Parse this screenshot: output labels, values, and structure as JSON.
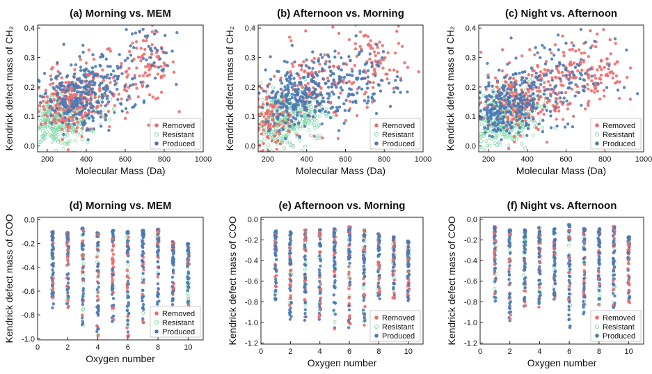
{
  "colors": {
    "removed": "#f06b6b",
    "resistant": "#7fd7a6",
    "produced": "#4a79b4"
  },
  "legend_labels": [
    "Removed",
    "Resistant",
    "Produced"
  ],
  "chart_data": [
    {
      "id": "a",
      "type": "scatter",
      "title": "(a) Morning vs. MEM",
      "xlabel": "Molecular Mass (Da)",
      "ylabel": "Kendrick defect mass of CH₂",
      "xlim": [
        150,
        1000
      ],
      "ylim": [
        -0.02,
        0.41
      ],
      "xticks": [
        200,
        400,
        600,
        800,
        1000
      ],
      "yticks": [
        0.0,
        0.1,
        0.2,
        0.3,
        0.4
      ],
      "legend_position": "bottom-right",
      "series": [
        {
          "name": "Removed",
          "cluster": [
            [
              300,
              0.14,
              70,
              0.045,
              160
            ],
            [
              420,
              0.19,
              110,
              0.06,
              130
            ],
            [
              720,
              0.27,
              70,
              0.06,
              80
            ]
          ]
        },
        {
          "name": "Resistant",
          "cluster": [
            [
              240,
              0.08,
              70,
              0.04,
              240
            ],
            [
              350,
              0.12,
              80,
              0.05,
              120
            ]
          ]
        },
        {
          "name": "Produced",
          "cluster": [
            [
              320,
              0.15,
              80,
              0.05,
              160
            ],
            [
              460,
              0.21,
              110,
              0.06,
              140
            ],
            [
              760,
              0.3,
              90,
              0.06,
              40
            ]
          ]
        }
      ]
    },
    {
      "id": "b",
      "type": "scatter",
      "title": "(b)  Afternoon vs. Morning",
      "xlabel": "Molecular Mass (Da)",
      "ylabel": "Kendrick defect mass of CH₂",
      "xlim": [
        150,
        1000
      ],
      "ylim": [
        -0.02,
        0.41
      ],
      "xticks": [
        200,
        400,
        600,
        800,
        1000
      ],
      "yticks": [
        0.0,
        0.1,
        0.2,
        0.3,
        0.4
      ],
      "legend_position": "bottom-right",
      "series": [
        {
          "name": "Removed",
          "cluster": [
            [
              220,
              0.09,
              50,
              0.05,
              110
            ],
            [
              440,
              0.2,
              110,
              0.07,
              120
            ],
            [
              740,
              0.28,
              80,
              0.07,
              80
            ]
          ]
        },
        {
          "name": "Resistant",
          "cluster": [
            [
              260,
              0.08,
              70,
              0.045,
              240
            ],
            [
              360,
              0.12,
              80,
              0.05,
              110
            ]
          ]
        },
        {
          "name": "Produced",
          "cluster": [
            [
              340,
              0.16,
              80,
              0.05,
              170
            ],
            [
              480,
              0.21,
              110,
              0.06,
              140
            ],
            [
              720,
              0.22,
              80,
              0.06,
              60
            ]
          ]
        }
      ]
    },
    {
      "id": "c",
      "type": "scatter",
      "title": "(c)  Night vs. Afternoon",
      "xlabel": "Molecular Mass (Da)",
      "ylabel": "Kendrick defect mass of CH₂",
      "xlim": [
        150,
        1000
      ],
      "ylim": [
        -0.02,
        0.41
      ],
      "xticks": [
        200,
        400,
        600,
        800,
        1000
      ],
      "yticks": [
        0.0,
        0.1,
        0.2,
        0.3,
        0.4
      ],
      "legend_position": "bottom-right",
      "series": [
        {
          "name": "Removed",
          "cluster": [
            [
              320,
              0.14,
              80,
              0.05,
              130
            ],
            [
              480,
              0.2,
              100,
              0.06,
              110
            ],
            [
              740,
              0.26,
              80,
              0.06,
              110
            ]
          ]
        },
        {
          "name": "Resistant",
          "cluster": [
            [
              260,
              0.09,
              70,
              0.045,
              240
            ],
            [
              360,
              0.13,
              80,
              0.05,
              120
            ]
          ]
        },
        {
          "name": "Produced",
          "cluster": [
            [
              220,
              0.1,
              50,
              0.04,
              90
            ],
            [
              340,
              0.15,
              80,
              0.05,
              170
            ],
            [
              560,
              0.23,
              150,
              0.07,
              110
            ]
          ]
        }
      ]
    },
    {
      "id": "d",
      "type": "scatter",
      "title": "(d) Morning vs. MEM",
      "xlabel": "Oxygen number",
      "ylabel": "Kendrick defect mass of COO",
      "xlim": [
        0,
        11
      ],
      "ylim": [
        -1.01,
        0.02
      ],
      "xticks": [
        0,
        2,
        4,
        6,
        8,
        10
      ],
      "yticks": [
        -1.0,
        -0.8,
        -0.6,
        -0.4,
        -0.2,
        0.0
      ],
      "legend_position": "bottom-right",
      "columns": [
        {
          "x": 1,
          "ymin": -0.78,
          "ymax": -0.1
        },
        {
          "x": 2,
          "ymin": -0.74,
          "ymax": -0.11
        },
        {
          "x": 3,
          "ymin": -0.9,
          "ymax": -0.07
        },
        {
          "x": 4,
          "ymin": -0.98,
          "ymax": -0.11
        },
        {
          "x": 5,
          "ymin": -0.86,
          "ymax": -0.09
        },
        {
          "x": 6,
          "ymin": -0.98,
          "ymax": -0.1
        },
        {
          "x": 7,
          "ymin": -0.88,
          "ymax": -0.09
        },
        {
          "x": 8,
          "ymin": -0.86,
          "ymax": -0.08
        },
        {
          "x": 9,
          "ymin": -0.74,
          "ymax": -0.18
        },
        {
          "x": 10,
          "ymin": -0.9,
          "ymax": -0.2
        }
      ],
      "series": [
        {
          "name": "Removed"
        },
        {
          "name": "Resistant"
        },
        {
          "name": "Produced"
        }
      ]
    },
    {
      "id": "e",
      "type": "scatter",
      "title": "(e)  Afternoon vs. Morning",
      "xlabel": "Oxygen number",
      "ylabel": "Kendrick defect mass of COO",
      "xlim": [
        0,
        11
      ],
      "ylim": [
        -1.21,
        0.02
      ],
      "xticks": [
        0,
        2,
        4,
        6,
        8,
        10
      ],
      "yticks": [
        -1.2,
        -1.0,
        -0.8,
        -0.6,
        -0.4,
        -0.2,
        0.0
      ],
      "legend_position": "bottom-right",
      "columns": [
        {
          "x": 1,
          "ymin": -0.78,
          "ymax": -0.11
        },
        {
          "x": 2,
          "ymin": -1.0,
          "ymax": -0.12
        },
        {
          "x": 3,
          "ymin": -0.98,
          "ymax": -0.1
        },
        {
          "x": 4,
          "ymin": -1.0,
          "ymax": -0.1
        },
        {
          "x": 5,
          "ymin": -1.07,
          "ymax": -0.09
        },
        {
          "x": 6,
          "ymin": -1.06,
          "ymax": -0.07
        },
        {
          "x": 7,
          "ymin": -1.04,
          "ymax": -0.1
        },
        {
          "x": 8,
          "ymin": -0.78,
          "ymax": -0.14
        },
        {
          "x": 9,
          "ymin": -0.8,
          "ymax": -0.17
        },
        {
          "x": 10,
          "ymin": -0.8,
          "ymax": -0.21
        }
      ],
      "series": [
        {
          "name": "Removed"
        },
        {
          "name": "Resistant"
        },
        {
          "name": "Produced"
        }
      ]
    },
    {
      "id": "f",
      "type": "scatter",
      "title": "(f) Night vs. Afternoon",
      "xlabel": "Oxygen number",
      "ylabel": "Kendrick defect mass of COO",
      "xlim": [
        0,
        11
      ],
      "ylim": [
        -1.21,
        0.02
      ],
      "xticks": [
        0,
        2,
        4,
        6,
        8,
        10
      ],
      "yticks": [
        -1.2,
        -1.0,
        -0.8,
        -0.6,
        -0.4,
        -0.2,
        0.0
      ],
      "legend_position": "bottom-right",
      "columns": [
        {
          "x": 1,
          "ymin": -0.92,
          "ymax": -0.07
        },
        {
          "x": 2,
          "ymin": -1.0,
          "ymax": -0.1
        },
        {
          "x": 3,
          "ymin": -0.88,
          "ymax": -0.1
        },
        {
          "x": 4,
          "ymin": -0.88,
          "ymax": -0.08
        },
        {
          "x": 5,
          "ymin": -0.78,
          "ymax": -0.09
        },
        {
          "x": 6,
          "ymin": -1.06,
          "ymax": -0.05
        },
        {
          "x": 7,
          "ymin": -0.92,
          "ymax": -0.09
        },
        {
          "x": 8,
          "ymin": -0.85,
          "ymax": -0.09
        },
        {
          "x": 9,
          "ymin": -0.86,
          "ymax": -0.07
        },
        {
          "x": 10,
          "ymin": -0.82,
          "ymax": -0.17
        }
      ],
      "series": [
        {
          "name": "Removed"
        },
        {
          "name": "Resistant"
        },
        {
          "name": "Produced"
        }
      ]
    }
  ]
}
